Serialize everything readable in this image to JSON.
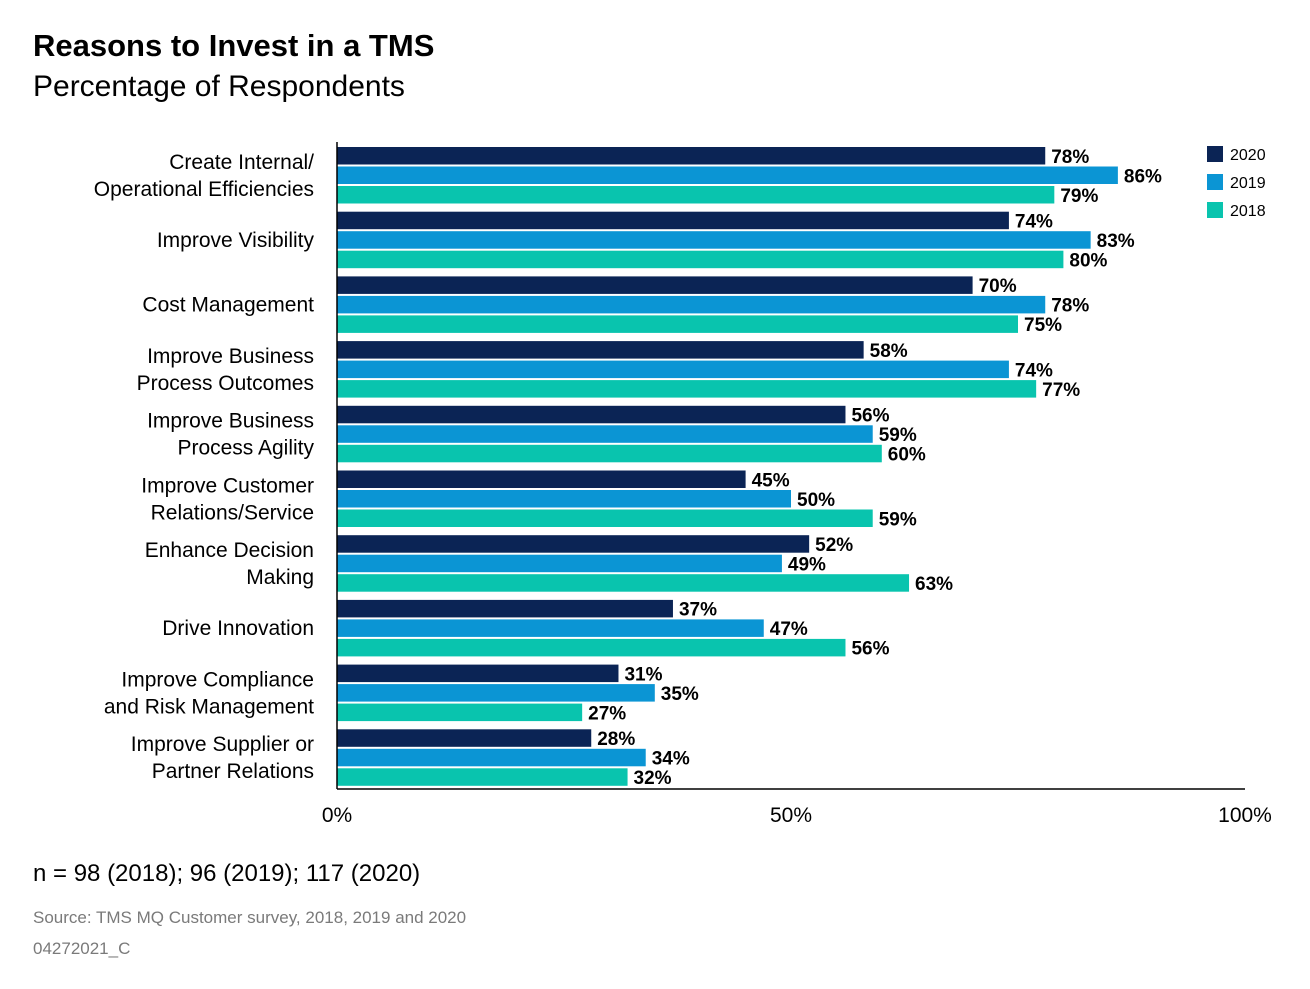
{
  "header": {
    "title": "Reasons to Invest in a TMS",
    "subtitle": "Percentage of Respondents"
  },
  "footer": {
    "note": "n = 98 (2018); 96 (2019); 117 (2020)",
    "source": "Source: TMS MQ Customer survey, 2018, 2019 and 2020",
    "code": "04272021_C"
  },
  "colors": {
    "2020": "#0b2455",
    "2019": "#0b95d4",
    "2018": "#09c4ae",
    "axis": "#000000"
  },
  "chart_data": {
    "type": "bar",
    "orientation": "horizontal",
    "title": "Reasons to Invest in a TMS",
    "subtitle": "Percentage of Respondents",
    "xlabel": "",
    "ylabel": "",
    "xlim": [
      0,
      100
    ],
    "ticks": [
      {
        "value": 0,
        "label": "0%"
      },
      {
        "value": 50,
        "label": "50%"
      },
      {
        "value": 100,
        "label": "100%"
      }
    ],
    "legend_position": "top-right",
    "categories": [
      [
        "Create Internal/",
        "Operational Efficiencies"
      ],
      [
        "Improve Visibility"
      ],
      [
        "Cost Management"
      ],
      [
        "Improve Business",
        "Process Outcomes"
      ],
      [
        "Improve Business",
        "Process Agility"
      ],
      [
        "Improve Customer",
        "Relations/Service"
      ],
      [
        "Enhance Decision",
        "Making"
      ],
      [
        "Drive Innovation"
      ],
      [
        "Improve Compliance",
        "and Risk Management"
      ],
      [
        "Improve Supplier or",
        "Partner Relations"
      ]
    ],
    "series": [
      {
        "name": "2020",
        "color": "#0b2455",
        "values": [
          78,
          74,
          70,
          58,
          56,
          45,
          52,
          37,
          31,
          28
        ]
      },
      {
        "name": "2019",
        "color": "#0b95d4",
        "values": [
          86,
          83,
          78,
          74,
          59,
          50,
          49,
          47,
          35,
          34
        ]
      },
      {
        "name": "2018",
        "color": "#09c4ae",
        "values": [
          79,
          80,
          75,
          77,
          60,
          59,
          63,
          56,
          27,
          32
        ]
      }
    ],
    "value_suffix": "%"
  }
}
